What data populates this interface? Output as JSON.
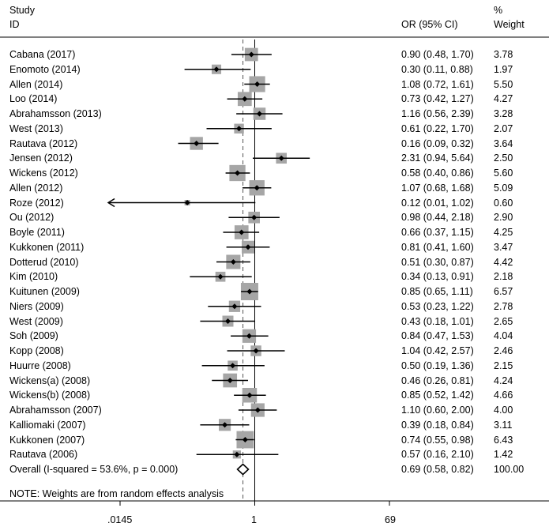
{
  "header": {
    "study_line1": "Study",
    "study_line2": "ID",
    "or_label": "OR (95% CI)",
    "weight_line1": "%",
    "weight_line2": "Weight"
  },
  "chart_data": {
    "type": "forest",
    "x_scale": "log",
    "xlim": [
      0.0145,
      69
    ],
    "x_ticks": [
      ".0145",
      "1",
      "69"
    ],
    "null_line": 1,
    "overall_or": 0.69,
    "studies": [
      {
        "label": "Cabana (2017)",
        "or": 0.9,
        "lo": 0.48,
        "hi": 1.7,
        "ci_text": "0.90 (0.48, 1.70)",
        "weight": "3.78"
      },
      {
        "label": "Enomoto (2014)",
        "or": 0.3,
        "lo": 0.11,
        "hi": 0.88,
        "ci_text": "0.30 (0.11, 0.88)",
        "weight": "1.97"
      },
      {
        "label": "Allen (2014)",
        "or": 1.08,
        "lo": 0.72,
        "hi": 1.61,
        "ci_text": "1.08 (0.72, 1.61)",
        "weight": "5.50"
      },
      {
        "label": "Loo (2014)",
        "or": 0.73,
        "lo": 0.42,
        "hi": 1.27,
        "ci_text": "0.73 (0.42, 1.27)",
        "weight": "4.27"
      },
      {
        "label": "Abrahamsson (2013)",
        "or": 1.16,
        "lo": 0.56,
        "hi": 2.39,
        "ci_text": "1.16 (0.56, 2.39)",
        "weight": "3.28"
      },
      {
        "label": "West (2013)",
        "or": 0.61,
        "lo": 0.22,
        "hi": 1.7,
        "ci_text": "0.61 (0.22, 1.70)",
        "weight": "2.07"
      },
      {
        "label": "Rautava (2012)",
        "or": 0.16,
        "lo": 0.09,
        "hi": 0.32,
        "ci_text": "0.16 (0.09, 0.32)",
        "weight": "3.64"
      },
      {
        "label": "Jensen (2012)",
        "or": 2.31,
        "lo": 0.94,
        "hi": 5.64,
        "ci_text": "2.31 (0.94, 5.64)",
        "weight": "2.50"
      },
      {
        "label": "Wickens (2012)",
        "or": 0.58,
        "lo": 0.4,
        "hi": 0.86,
        "ci_text": "0.58 (0.40, 0.86)",
        "weight": "5.60"
      },
      {
        "label": "Allen (2012)",
        "or": 1.07,
        "lo": 0.68,
        "hi": 1.68,
        "ci_text": "1.07 (0.68, 1.68)",
        "weight": "5.09"
      },
      {
        "label": "Roze (2012)",
        "or": 0.12,
        "lo": 0.01,
        "hi": 1.02,
        "ci_text": "0.12 (0.01, 1.02)",
        "weight": "0.60",
        "arrow_left": true
      },
      {
        "label": "Ou (2012)",
        "or": 0.98,
        "lo": 0.44,
        "hi": 2.18,
        "ci_text": "0.98 (0.44, 2.18)",
        "weight": "2.90"
      },
      {
        "label": "Boyle (2011)",
        "or": 0.66,
        "lo": 0.37,
        "hi": 1.15,
        "ci_text": "0.66 (0.37, 1.15)",
        "weight": "4.25"
      },
      {
        "label": "Kukkonen (2011)",
        "or": 0.81,
        "lo": 0.41,
        "hi": 1.6,
        "ci_text": "0.81 (0.41, 1.60)",
        "weight": "3.47"
      },
      {
        "label": "Dotterud (2010)",
        "or": 0.51,
        "lo": 0.3,
        "hi": 0.87,
        "ci_text": "0.51 (0.30, 0.87)",
        "weight": "4.42"
      },
      {
        "label": "Kim (2010)",
        "or": 0.34,
        "lo": 0.13,
        "hi": 0.91,
        "ci_text": "0.34 (0.13, 0.91)",
        "weight": "2.18"
      },
      {
        "label": "Kuitunen (2009)",
        "or": 0.85,
        "lo": 0.65,
        "hi": 1.11,
        "ci_text": "0.85 (0.65, 1.11)",
        "weight": "6.57"
      },
      {
        "label": "Niers (2009)",
        "or": 0.53,
        "lo": 0.23,
        "hi": 1.22,
        "ci_text": "0.53 (0.23, 1.22)",
        "weight": "2.78"
      },
      {
        "label": "West (2009)",
        "or": 0.43,
        "lo": 0.18,
        "hi": 1.01,
        "ci_text": "0.43 (0.18, 1.01)",
        "weight": "2.65"
      },
      {
        "label": "Soh (2009)",
        "or": 0.84,
        "lo": 0.47,
        "hi": 1.53,
        "ci_text": "0.84 (0.47, 1.53)",
        "weight": "4.04"
      },
      {
        "label": "Kopp (2008)",
        "or": 1.04,
        "lo": 0.42,
        "hi": 2.57,
        "ci_text": "1.04 (0.42, 2.57)",
        "weight": "2.46"
      },
      {
        "label": "Huurre (2008)",
        "or": 0.5,
        "lo": 0.19,
        "hi": 1.36,
        "ci_text": "0.50 (0.19, 1.36)",
        "weight": "2.15"
      },
      {
        "label": "Wickens(a) (2008)",
        "or": 0.46,
        "lo": 0.26,
        "hi": 0.81,
        "ci_text": "0.46 (0.26, 0.81)",
        "weight": "4.24"
      },
      {
        "label": "Wickens(b) (2008)",
        "or": 0.85,
        "lo": 0.52,
        "hi": 1.42,
        "ci_text": "0.85 (0.52, 1.42)",
        "weight": "4.66"
      },
      {
        "label": "Abrahamsson (2007)",
        "or": 1.1,
        "lo": 0.6,
        "hi": 2.0,
        "ci_text": "1.10 (0.60, 2.00)",
        "weight": "4.00"
      },
      {
        "label": "Kalliomaki (2007)",
        "or": 0.39,
        "lo": 0.18,
        "hi": 0.84,
        "ci_text": "0.39 (0.18, 0.84)",
        "weight": "3.11"
      },
      {
        "label": "Kukkonen (2007)",
        "or": 0.74,
        "lo": 0.55,
        "hi": 0.98,
        "ci_text": "0.74 (0.55, 0.98)",
        "weight": "6.43"
      },
      {
        "label": "Rautava (2006)",
        "or": 0.57,
        "lo": 0.16,
        "hi": 2.1,
        "ci_text": "0.57 (0.16, 2.10)",
        "weight": "1.42"
      }
    ],
    "overall": {
      "label": "Overall  (I-squared = 53.6%, p = 0.000)",
      "or": 0.69,
      "lo": 0.58,
      "hi": 0.82,
      "ci_text": "0.69 (0.58, 0.82)",
      "weight": "100.00"
    },
    "note": "NOTE: Weights are from random effects analysis"
  },
  "colors": {
    "box": "#a6a6a6",
    "line": "#000000",
    "text": "#000000",
    "dashed": "#555555"
  }
}
